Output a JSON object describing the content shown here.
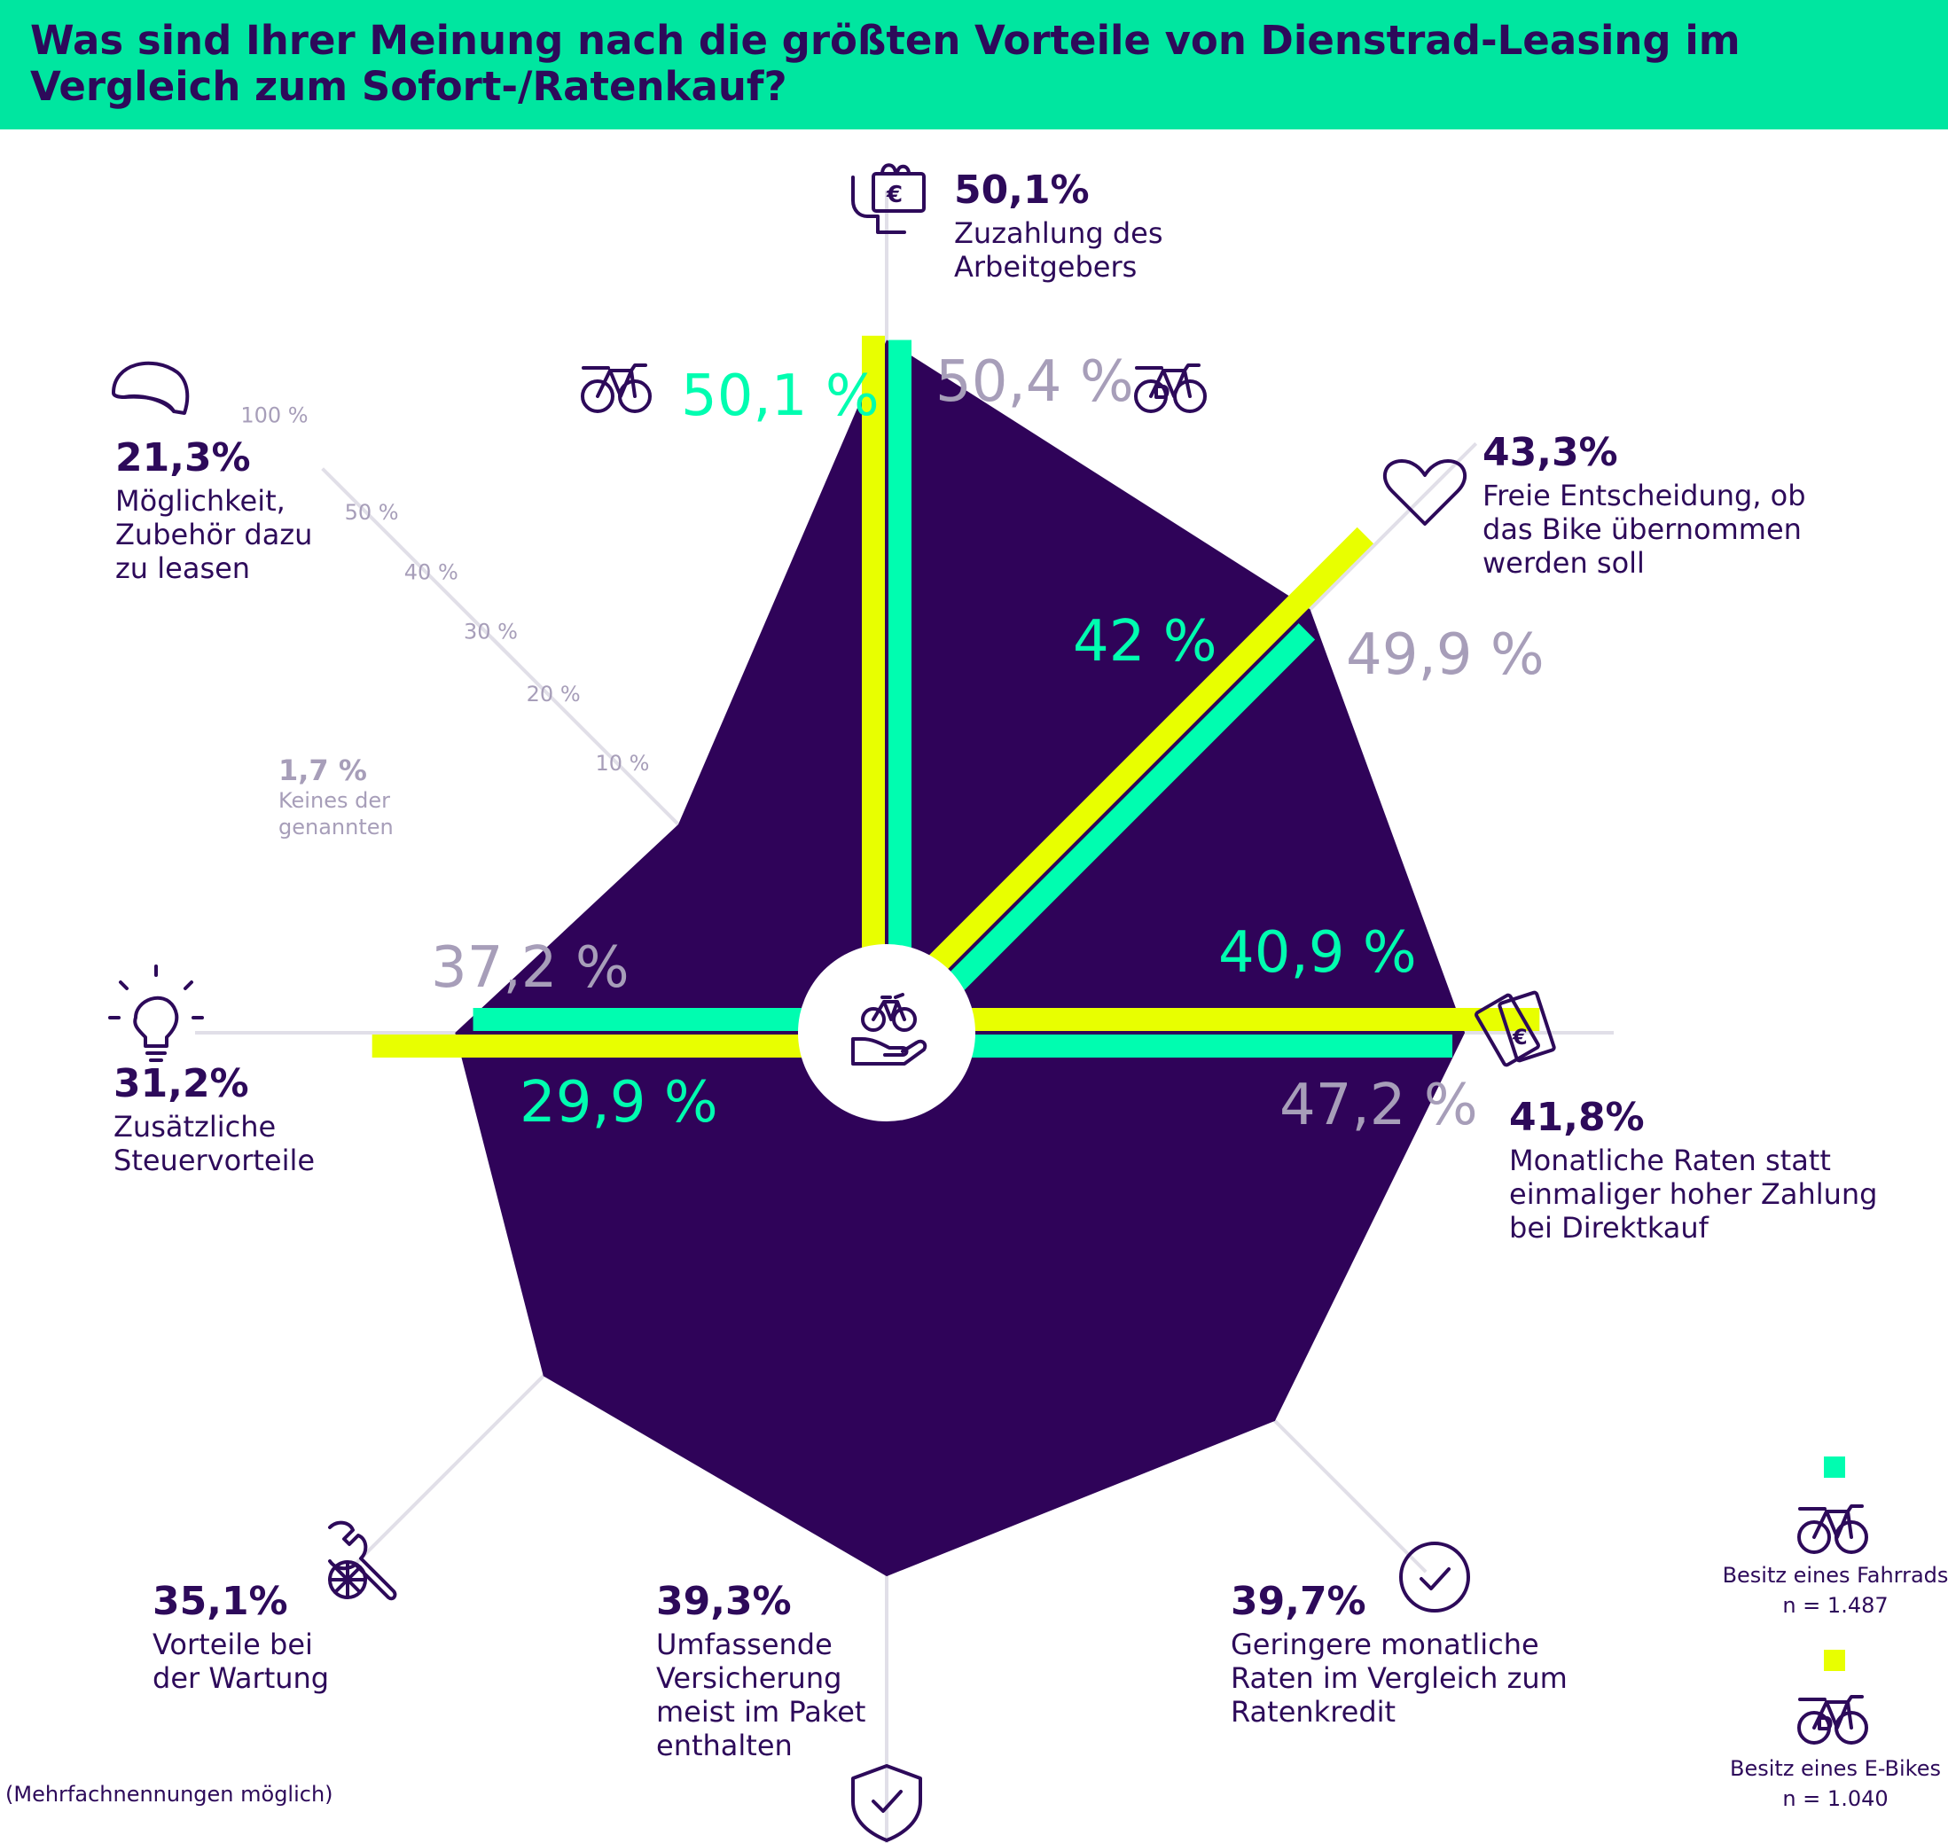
{
  "title": "Was sind Ihrer Meinung nach die größten Vorteile von Dienstrad-Leasing im Vergleich zum Sofort-/Ratenkauf?",
  "footnote": "(Mehrfachnennungen möglich)",
  "colors": {
    "background": "#ffffff",
    "header": "#00e6a0",
    "polygon": "#2f0359",
    "fahrrad": "#00fdb0",
    "ebike": "#e8ff00",
    "text": "#2d0a5a",
    "muted": "#a79eb9"
  },
  "chart_data": {
    "type": "radar",
    "title": "Was sind Ihrer Meinung nach die größten Vorteile von Dienstrad-Leasing im Vergleich zum Sofort-/Ratenkauf?",
    "axes": [
      {
        "key": "arbeitgeber",
        "icon": "money-hand-icon",
        "total": "50,1%",
        "label": "Zuzahlung des Arbeitgebers",
        "value": 50.1
      },
      {
        "key": "freie-entscheidung",
        "icon": "heart-icon",
        "total": "43,3%",
        "label": "Freie Entscheidung, ob das Bike übernommen werden soll",
        "value": 43.3
      },
      {
        "key": "monatliche-raten",
        "icon": "banknotes-icon",
        "total": "41,8%",
        "label": "Monatliche Raten statt einmaliger hoher Zahlung bei Direktkauf",
        "value": 41.8
      },
      {
        "key": "geringere-raten",
        "icon": "check-circle-icon",
        "total": "39,7%",
        "label": "Geringere monatliche Raten im Vergleich zum Ratenkredit",
        "value": 39.7
      },
      {
        "key": "versicherung",
        "icon": "shield-check-icon",
        "total": "39,3%",
        "label": "Umfassende Versicherung meist im Paket enthalten",
        "value": 39.3
      },
      {
        "key": "wartung",
        "icon": "wrench-wheel-icon",
        "total": "35,1%",
        "label": "Vorteile bei der Wartung",
        "value": 35.1
      },
      {
        "key": "steuer",
        "icon": "lightbulb-icon",
        "total": "31,2%",
        "label": "Zusätzliche Steuervorteile",
        "value": 31.2
      },
      {
        "key": "zubehoer",
        "icon": "helmet-icon",
        "total": "21,3%",
        "label": "Möglichkeit, Zubehör dazu zu leasen",
        "value": 21.3
      }
    ],
    "segments": [
      {
        "axis": "arbeitgeber",
        "fahrrad": 50.1,
        "ebike": 50.4,
        "fahrrad_label": "50,1 %",
        "ebike_label": "50,4 %"
      },
      {
        "axis": "freie-entscheidung",
        "fahrrad": 42,
        "ebike": 49.9,
        "fahrrad_label": "42 %",
        "ebike_label": "49,9 %"
      },
      {
        "axis": "monatliche-raten",
        "fahrrad": 40.9,
        "ebike": 47.2,
        "fahrrad_label": "40,9 %",
        "ebike_label": "47,2 %"
      },
      {
        "axis": "steuer",
        "fahrrad": 29.9,
        "ebike": 37.2,
        "fahrrad_label": "29,9 %",
        "ebike_label": "37,2 %"
      }
    ],
    "scale_ticks": [
      "10 %",
      "20 %",
      "30 %",
      "40 %",
      "50 %",
      "100 %"
    ],
    "scale_ticks_values": [
      10,
      20,
      30,
      40,
      50,
      100
    ],
    "none_of_these": {
      "value": "1,7 %",
      "label": "Keines der genannten",
      "number": 1.7
    },
    "series": [
      {
        "name": "Besitz eines Fahrrads",
        "n": "n = 1.487",
        "color": "#00fdb0"
      },
      {
        "name": "Besitz eines E-Bikes",
        "n": "n = 1.040",
        "color": "#e8ff00"
      }
    ]
  }
}
